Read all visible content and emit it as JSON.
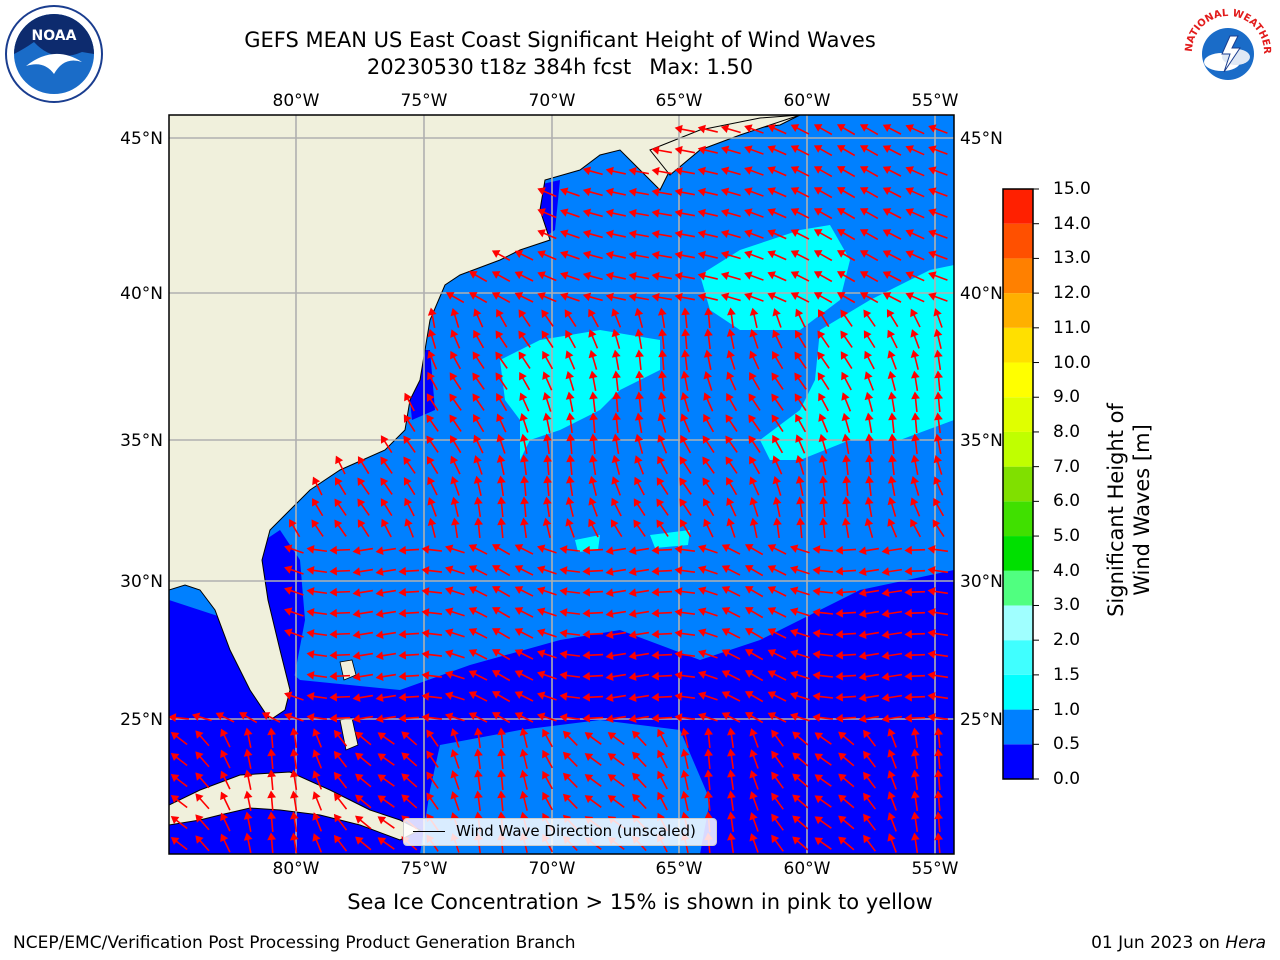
{
  "title_line1": "GEFS MEAN US East Coast Significant Height of Wind Waves",
  "title_line2": "20230530 t18z 384h fcst",
  "title_max": "Max: 1.50",
  "caption": "Sea Ice Concentration > 15% is shown in pink to yellow",
  "footer_left": "NCEP/EMC/Verification Post Processing Product Generation Branch",
  "footer_date": "01 Jun 2023 on",
  "footer_host": "Hera",
  "legend_label": "Wind Wave Direction (unscaled)",
  "lon_ticks": [
    "80°W",
    "75°W",
    "70°W",
    "65°W",
    "60°W",
    "55°W"
  ],
  "lat_ticks": [
    "45°N",
    "40°N",
    "35°N",
    "30°N",
    "25°N"
  ],
  "colorbar": {
    "title": "Significant Height of Wind Waves [m]",
    "labels": [
      "0.0",
      "0.5",
      "1.0",
      "1.5",
      "2.0",
      "3.0",
      "4.0",
      "5.0",
      "6.0",
      "7.0",
      "8.0",
      "9.0",
      "10.0",
      "11.0",
      "12.0",
      "13.0",
      "14.0",
      "15.0"
    ],
    "colors": [
      "#0000ff",
      "#0080ff",
      "#00ffff",
      "#40ffff",
      "#a0ffff",
      "#50ff80",
      "#00e000",
      "#40e000",
      "#80e000",
      "#c0ff00",
      "#e0ff00",
      "#ffff00",
      "#ffe000",
      "#ffb000",
      "#ff8000",
      "#ff5000",
      "#ff2000"
    ]
  },
  "colors": {
    "land": "#f0f0dc",
    "grid": "#b0b0b0",
    "arrow": "#ff0000",
    "coast": "#000000"
  },
  "logos": {
    "noaa": "NOAA",
    "nws": "NATIONAL WEATHER SERVICE"
  }
}
